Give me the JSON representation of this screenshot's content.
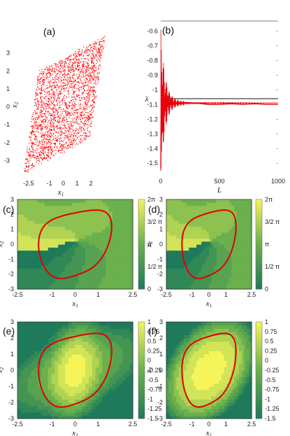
{
  "chart_data": [
    {
      "panel_label": "(a)",
      "type": "scatter",
      "xlabel": "x1",
      "ylabel": "x2",
      "xticks": [
        "-2.5",
        "-1",
        "0",
        "1",
        "2"
      ],
      "xtick_values": [
        -2.5,
        -1,
        0,
        1,
        2
      ],
      "yticks": [
        "3",
        "2",
        "1",
        "0",
        "-1",
        "-2",
        "-3"
      ],
      "ytick_values": [
        3,
        2,
        1,
        0,
        -1,
        -2,
        -3
      ],
      "xlim": [
        -3.3,
        3.0
      ],
      "ylim": [
        -4.0,
        4.2
      ],
      "point_color": "#ff0000",
      "description_points": "dense chaotic attractor cloud with spiral centre near (0.5, 0.3)"
    },
    {
      "panel_label": "(b)",
      "type": "line",
      "xlabel": "L",
      "ylabel": "λ",
      "xticks": [
        "0",
        "500",
        "1000"
      ],
      "xtick_values": [
        0,
        500,
        1000
      ],
      "yticks": [
        "-0.6",
        "-0.7",
        "-0.8",
        "-0.9",
        "-1",
        "-1.1",
        "-1.2",
        "-1.3",
        "-1.4",
        "-1.5"
      ],
      "ytick_values": [
        -0.6,
        -0.7,
        -0.8,
        -0.9,
        -1.0,
        -1.1,
        -1.2,
        -1.3,
        -1.4,
        -1.5
      ],
      "xlim": [
        0,
        1000
      ],
      "ylim": [
        -1.58,
        -0.53
      ],
      "reference_line_y": -1.06,
      "series": [
        {
          "color": "#e8000b",
          "x": [
            0,
            3,
            6,
            9,
            12,
            15,
            20,
            25,
            30,
            40,
            50,
            60,
            70,
            80,
            100,
            120,
            150,
            200,
            300,
            400,
            500,
            600,
            700,
            800,
            900,
            1000
          ],
          "y": [
            -1.55,
            -0.84,
            -1.42,
            -0.88,
            -1.3,
            -0.97,
            -1.25,
            -0.99,
            -1.18,
            -1.02,
            -1.15,
            -1.04,
            -1.12,
            -1.06,
            -1.1,
            -1.08,
            -1.095,
            -1.085,
            -1.09,
            -1.1,
            -1.1,
            -1.095,
            -1.1,
            -1.095,
            -1.1,
            -1.1
          ]
        }
      ]
    },
    {
      "panel_label": "(c)",
      "type": "heatmap",
      "xlabel": "x1",
      "ylabel": "x2",
      "xticks": [
        "-2.5",
        "-1",
        "0",
        "1",
        "2.5"
      ],
      "yticks": [
        "3",
        "2",
        "1",
        "0",
        "-1",
        "-2",
        "-3"
      ],
      "xlim": [
        -2.5,
        2.5
      ],
      "ylim": [
        -3,
        3
      ],
      "colorbar_ticks": [
        "2π",
        "3/2 π",
        "π",
        "1/2 π",
        "0"
      ],
      "colorbar_range": [
        0,
        6.283
      ]
    },
    {
      "panel_label": "(d)",
      "type": "heatmap",
      "xlabel": "x1",
      "ylabel": "x2",
      "xticks": [
        "-2.5",
        "-1",
        "0",
        "1",
        "2.5"
      ],
      "yticks": [
        "3",
        "2",
        "1",
        "0",
        "-1",
        "-2",
        "-3"
      ],
      "xlim": [
        -2.5,
        2.5
      ],
      "ylim": [
        -3,
        3
      ],
      "colorbar_ticks": [
        "2π",
        "3/2 π",
        "π",
        "1/2 π",
        "0"
      ],
      "colorbar_range": [
        0,
        6.283
      ]
    },
    {
      "panel_label": "(e)",
      "type": "heatmap",
      "xlabel": "x1",
      "ylabel": "x2",
      "xticks": [
        "-2.5",
        "-1",
        "0",
        "1",
        "2.5"
      ],
      "yticks": [
        "3",
        "2",
        "1",
        "0",
        "-1",
        "-2",
        "-3"
      ],
      "xlim": [
        -2.5,
        2.5
      ],
      "ylim": [
        -3,
        3
      ],
      "colorbar_ticks": [
        "1",
        "0.75",
        "0.5",
        "0.25",
        "0",
        "-0.25",
        "-0.5",
        "-0.75",
        "-1",
        "-1.25",
        "-1.5"
      ],
      "colorbar_range": [
        -1.5,
        1
      ]
    },
    {
      "panel_label": "(f)",
      "type": "heatmap",
      "xlabel": "x1",
      "ylabel": "x2",
      "xticks": [
        "-2.5",
        "-1",
        "0",
        "1",
        "2.5"
      ],
      "yticks": [
        "3",
        "2",
        "1",
        "0",
        "-1",
        "-2",
        "-3"
      ],
      "xlim": [
        -2.5,
        2.5
      ],
      "ylim": [
        -3,
        3
      ],
      "colorbar_ticks": [
        "1",
        "0.75",
        "0.5",
        "0.25",
        "0",
        "-0.25",
        "-0.5",
        "-0.75",
        "-1",
        "-1.25",
        "-1.5"
      ],
      "colorbar_range": [
        -1.5,
        1
      ]
    }
  ],
  "colors": {
    "cmap_low": "#1e7a5a",
    "cmap_mid": "#6ab04c",
    "cmap_high": "#f5f55a",
    "curve": "#e00000",
    "attractor": "#ff0000"
  }
}
